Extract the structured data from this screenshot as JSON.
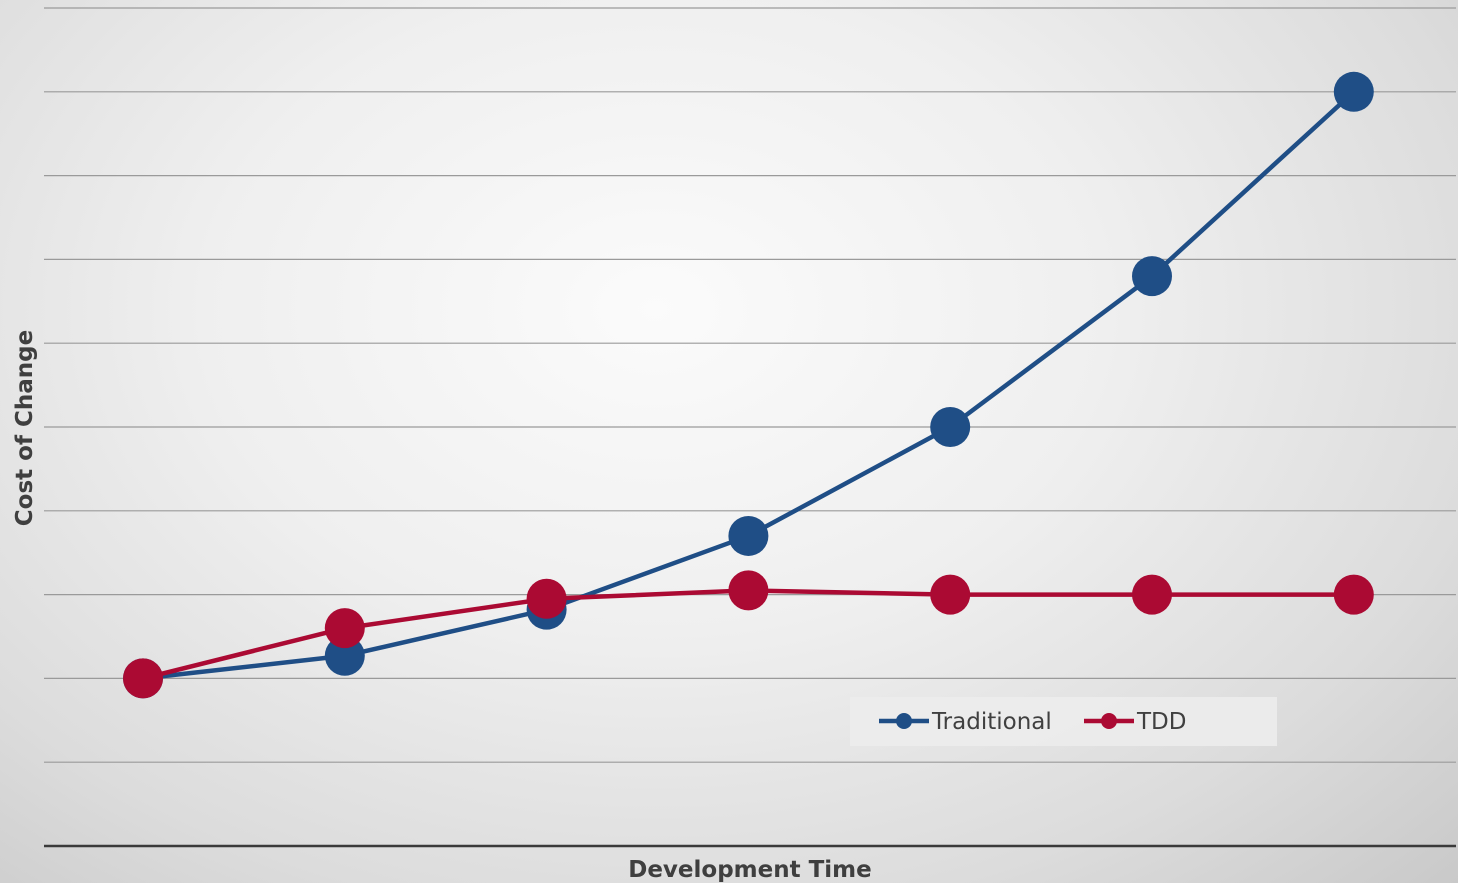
{
  "chart_data": {
    "type": "line",
    "title": "",
    "xlabel": "Development Time",
    "ylabel": "Cost of Change",
    "x": [
      1,
      2,
      3,
      4,
      5,
      6,
      7
    ],
    "ylim": [
      -1,
      9
    ],
    "grid": true,
    "y_tick_labels": false,
    "x_tick_labels": false,
    "legend_position": "bottom-right",
    "series": [
      {
        "name": "Traditional",
        "color": "#1f4e86",
        "values": [
          1,
          1.27,
          1.82,
          2.7,
          4,
          5.8,
          8
        ]
      },
      {
        "name": "TDD",
        "color": "#ab0a33",
        "values": [
          1,
          1.6,
          1.95,
          2.05,
          2,
          2,
          2
        ]
      }
    ]
  }
}
